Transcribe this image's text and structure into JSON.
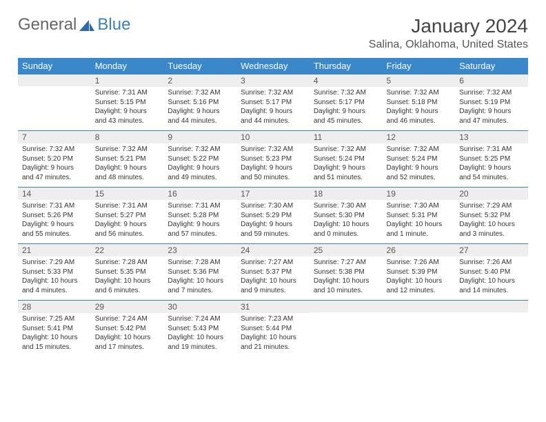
{
  "brand": {
    "general": "General",
    "blue": "Blue"
  },
  "title": "January 2024",
  "location": "Salina, Oklahoma, United States",
  "colors": {
    "header_bg": "#3a88c9",
    "header_text": "#ffffff",
    "border": "#3a7fbf",
    "daynum_bg": "#eeeeee",
    "text": "#333333",
    "title_text": "#444444"
  },
  "day_headers": [
    "Sunday",
    "Monday",
    "Tuesday",
    "Wednesday",
    "Thursday",
    "Friday",
    "Saturday"
  ],
  "weeks": [
    [
      null,
      {
        "n": "1",
        "sr": "7:31 AM",
        "ss": "5:15 PM",
        "dl": "9 hours and 43 minutes."
      },
      {
        "n": "2",
        "sr": "7:32 AM",
        "ss": "5:16 PM",
        "dl": "9 hours and 44 minutes."
      },
      {
        "n": "3",
        "sr": "7:32 AM",
        "ss": "5:17 PM",
        "dl": "9 hours and 44 minutes."
      },
      {
        "n": "4",
        "sr": "7:32 AM",
        "ss": "5:17 PM",
        "dl": "9 hours and 45 minutes."
      },
      {
        "n": "5",
        "sr": "7:32 AM",
        "ss": "5:18 PM",
        "dl": "9 hours and 46 minutes."
      },
      {
        "n": "6",
        "sr": "7:32 AM",
        "ss": "5:19 PM",
        "dl": "9 hours and 47 minutes."
      }
    ],
    [
      {
        "n": "7",
        "sr": "7:32 AM",
        "ss": "5:20 PM",
        "dl": "9 hours and 47 minutes."
      },
      {
        "n": "8",
        "sr": "7:32 AM",
        "ss": "5:21 PM",
        "dl": "9 hours and 48 minutes."
      },
      {
        "n": "9",
        "sr": "7:32 AM",
        "ss": "5:22 PM",
        "dl": "9 hours and 49 minutes."
      },
      {
        "n": "10",
        "sr": "7:32 AM",
        "ss": "5:23 PM",
        "dl": "9 hours and 50 minutes."
      },
      {
        "n": "11",
        "sr": "7:32 AM",
        "ss": "5:24 PM",
        "dl": "9 hours and 51 minutes."
      },
      {
        "n": "12",
        "sr": "7:32 AM",
        "ss": "5:24 PM",
        "dl": "9 hours and 52 minutes."
      },
      {
        "n": "13",
        "sr": "7:31 AM",
        "ss": "5:25 PM",
        "dl": "9 hours and 54 minutes."
      }
    ],
    [
      {
        "n": "14",
        "sr": "7:31 AM",
        "ss": "5:26 PM",
        "dl": "9 hours and 55 minutes."
      },
      {
        "n": "15",
        "sr": "7:31 AM",
        "ss": "5:27 PM",
        "dl": "9 hours and 56 minutes."
      },
      {
        "n": "16",
        "sr": "7:31 AM",
        "ss": "5:28 PM",
        "dl": "9 hours and 57 minutes."
      },
      {
        "n": "17",
        "sr": "7:30 AM",
        "ss": "5:29 PM",
        "dl": "9 hours and 59 minutes."
      },
      {
        "n": "18",
        "sr": "7:30 AM",
        "ss": "5:30 PM",
        "dl": "10 hours and 0 minutes."
      },
      {
        "n": "19",
        "sr": "7:30 AM",
        "ss": "5:31 PM",
        "dl": "10 hours and 1 minute."
      },
      {
        "n": "20",
        "sr": "7:29 AM",
        "ss": "5:32 PM",
        "dl": "10 hours and 3 minutes."
      }
    ],
    [
      {
        "n": "21",
        "sr": "7:29 AM",
        "ss": "5:33 PM",
        "dl": "10 hours and 4 minutes."
      },
      {
        "n": "22",
        "sr": "7:28 AM",
        "ss": "5:35 PM",
        "dl": "10 hours and 6 minutes."
      },
      {
        "n": "23",
        "sr": "7:28 AM",
        "ss": "5:36 PM",
        "dl": "10 hours and 7 minutes."
      },
      {
        "n": "24",
        "sr": "7:27 AM",
        "ss": "5:37 PM",
        "dl": "10 hours and 9 minutes."
      },
      {
        "n": "25",
        "sr": "7:27 AM",
        "ss": "5:38 PM",
        "dl": "10 hours and 10 minutes."
      },
      {
        "n": "26",
        "sr": "7:26 AM",
        "ss": "5:39 PM",
        "dl": "10 hours and 12 minutes."
      },
      {
        "n": "27",
        "sr": "7:26 AM",
        "ss": "5:40 PM",
        "dl": "10 hours and 14 minutes."
      }
    ],
    [
      {
        "n": "28",
        "sr": "7:25 AM",
        "ss": "5:41 PM",
        "dl": "10 hours and 15 minutes."
      },
      {
        "n": "29",
        "sr": "7:24 AM",
        "ss": "5:42 PM",
        "dl": "10 hours and 17 minutes."
      },
      {
        "n": "30",
        "sr": "7:24 AM",
        "ss": "5:43 PM",
        "dl": "10 hours and 19 minutes."
      },
      {
        "n": "31",
        "sr": "7:23 AM",
        "ss": "5:44 PM",
        "dl": "10 hours and 21 minutes."
      },
      null,
      null,
      null
    ]
  ],
  "labels": {
    "sunrise": "Sunrise:",
    "sunset": "Sunset:",
    "daylight": "Daylight:"
  }
}
